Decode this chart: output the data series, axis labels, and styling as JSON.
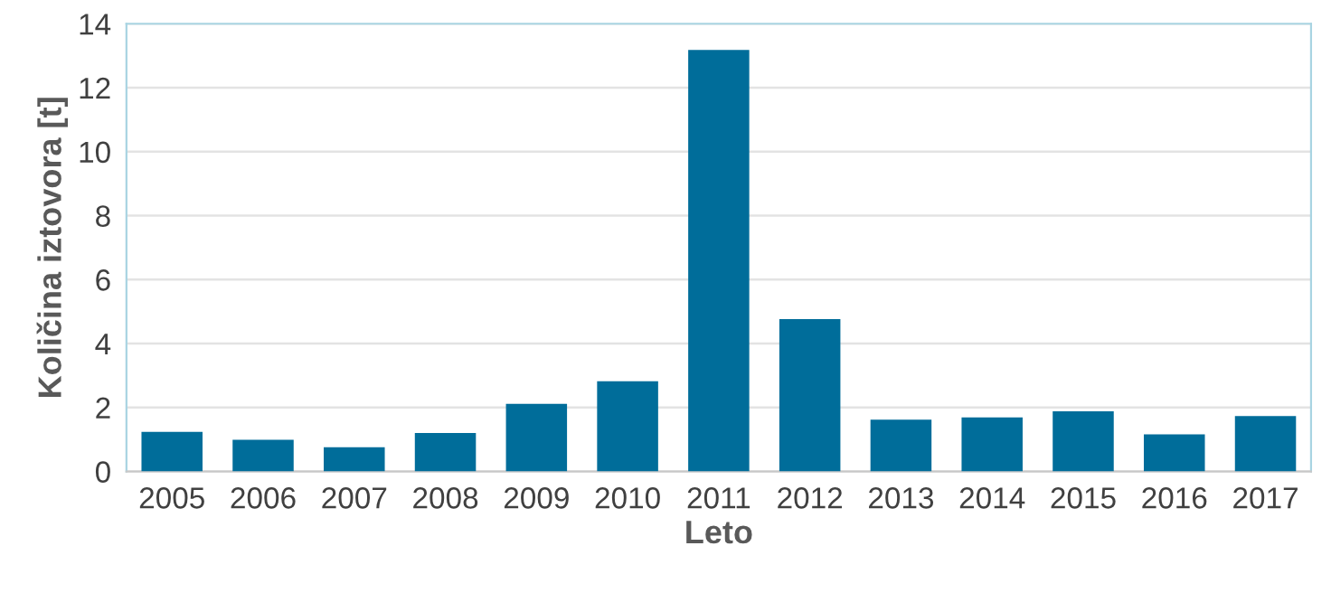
{
  "chart_data": {
    "type": "bar",
    "xlabel": "Leto",
    "ylabel": "Količina iztovora [t]",
    "categories": [
      "2005",
      "2006",
      "2007",
      "2008",
      "2009",
      "2010",
      "2011",
      "2012",
      "2013",
      "2014",
      "2015",
      "2016",
      "2017"
    ],
    "values": [
      1.24,
      0.99,
      0.76,
      1.2,
      2.11,
      2.82,
      13.18,
      4.76,
      1.62,
      1.69,
      1.88,
      1.16,
      1.73
    ],
    "color": "#006d9a",
    "ylim": [
      0,
      14
    ],
    "yticks": [
      0,
      2,
      4,
      6,
      8,
      10,
      12,
      14
    ],
    "grid": "y",
    "legend": false
  }
}
